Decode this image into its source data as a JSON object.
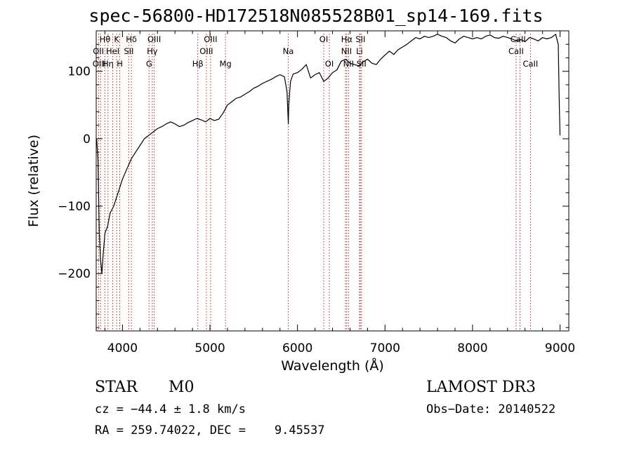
{
  "chart_data": {
    "type": "line",
    "title": "spec-56800-HD172518N085528B01_sp14-169.fits",
    "xlabel": "Wavelength (Å)",
    "ylabel": "Flux (relative)",
    "xlim": [
      3700,
      9100
    ],
    "ylim": [
      -285,
      160
    ],
    "xticks": [
      4000,
      5000,
      6000,
      7000,
      8000,
      9000
    ],
    "yticks": [
      -200,
      -100,
      0,
      100
    ],
    "series": [
      {
        "name": "spectrum",
        "x": [
          3705,
          3720,
          3735,
          3750,
          3765,
          3780,
          3800,
          3830,
          3860,
          3900,
          3950,
          4000,
          4050,
          4100,
          4150,
          4200,
          4250,
          4300,
          4350,
          4400,
          4450,
          4500,
          4550,
          4600,
          4650,
          4700,
          4750,
          4800,
          4850,
          4900,
          4950,
          5000,
          5050,
          5100,
          5150,
          5200,
          5250,
          5300,
          5350,
          5400,
          5450,
          5500,
          5550,
          5600,
          5650,
          5700,
          5750,
          5800,
          5850,
          5880,
          5890,
          5895,
          5900,
          5920,
          5950,
          6000,
          6050,
          6100,
          6150,
          6200,
          6250,
          6300,
          6350,
          6400,
          6450,
          6500,
          6550,
          6600,
          6650,
          6700,
          6750,
          6800,
          6850,
          6900,
          6950,
          7000,
          7050,
          7100,
          7150,
          7200,
          7250,
          7300,
          7350,
          7400,
          7450,
          7500,
          7550,
          7600,
          7650,
          7700,
          7750,
          7800,
          7850,
          7900,
          7950,
          8000,
          8050,
          8100,
          8150,
          8200,
          8250,
          8300,
          8350,
          8400,
          8450,
          8500,
          8550,
          8600,
          8650,
          8700,
          8750,
          8800,
          8850,
          8900,
          8950,
          8980,
          8990,
          9000
        ],
        "y": [
          0,
          -30,
          -140,
          -180,
          -200,
          -170,
          -140,
          -130,
          -110,
          -100,
          -80,
          -60,
          -45,
          -30,
          -20,
          -10,
          0,
          5,
          10,
          15,
          18,
          22,
          25,
          22,
          18,
          20,
          24,
          27,
          30,
          28,
          25,
          30,
          27,
          29,
          38,
          50,
          55,
          60,
          62,
          66,
          70,
          75,
          78,
          82,
          85,
          88,
          92,
          95,
          92,
          70,
          40,
          22,
          50,
          85,
          96,
          98,
          103,
          110,
          90,
          95,
          98,
          85,
          90,
          98,
          102,
          115,
          118,
          112,
          110,
          108,
          114,
          118,
          112,
          110,
          118,
          124,
          130,
          125,
          132,
          136,
          140,
          145,
          150,
          148,
          152,
          150,
          152,
          155,
          152,
          150,
          145,
          142,
          148,
          152,
          150,
          148,
          150,
          148,
          152,
          154,
          150,
          149,
          152,
          150,
          148,
          145,
          147,
          144,
          150,
          148,
          145,
          150,
          148,
          150,
          155,
          140,
          60,
          5
        ]
      }
    ],
    "lines": [
      {
        "wave": 3727,
        "labels": [
          "OII"
        ]
      },
      {
        "wave": 3750,
        "labels": [
          "OIII"
        ]
      },
      {
        "wave": 3798,
        "labels": [
          "Hθ"
        ]
      },
      {
        "wave": 3835,
        "labels": [
          "Hη"
        ]
      },
      {
        "wave": 3889,
        "labels": [
          "HeI"
        ]
      },
      {
        "wave": 3934,
        "labels": [
          "K"
        ]
      },
      {
        "wave": 3969,
        "labels": [
          "H"
        ]
      },
      {
        "wave": 4072,
        "labels": [
          "SII"
        ]
      },
      {
        "wave": 4102,
        "labels": [
          "Hδ"
        ]
      },
      {
        "wave": 4304,
        "labels": [
          "G"
        ]
      },
      {
        "wave": 4341,
        "labels": [
          "Hγ"
        ]
      },
      {
        "wave": 4363,
        "labels": [
          "OIII"
        ]
      },
      {
        "wave": 4861,
        "labels": [
          "Hβ"
        ]
      },
      {
        "wave": 4959,
        "labels": [
          "OIII"
        ]
      },
      {
        "wave": 5007,
        "labels": [
          "OIII"
        ]
      },
      {
        "wave": 5177,
        "labels": [
          "Mg"
        ]
      },
      {
        "wave": 5894,
        "labels": [
          "Na"
        ]
      },
      {
        "wave": 6300,
        "labels": [
          "OI"
        ]
      },
      {
        "wave": 6364,
        "labels": [
          "OI"
        ]
      },
      {
        "wave": 6548,
        "labels": [
          "NII"
        ]
      },
      {
        "wave": 6563,
        "labels": [
          "Hα"
        ]
      },
      {
        "wave": 6583,
        "labels": [
          "NII"
        ]
      },
      {
        "wave": 6708,
        "labels": [
          "Li"
        ]
      },
      {
        "wave": 6717,
        "labels": [
          "SII"
        ]
      },
      {
        "wave": 6731,
        "labels": [
          "SII"
        ]
      },
      {
        "wave": 8498,
        "labels": [
          "CaII"
        ]
      },
      {
        "wave": 8542,
        "labels": [
          "CaII"
        ]
      },
      {
        "wave": 8662,
        "labels": [
          "CaII"
        ]
      }
    ],
    "line_labels_rows": [
      [
        {
          "text": "Hθ",
          "wave": 3800
        },
        {
          "text": "K",
          "wave": 3934
        },
        {
          "text": "Hδ",
          "wave": 4102
        },
        {
          "text": "OIII",
          "wave": 4363
        },
        {
          "text": "OIII",
          "wave": 5007
        },
        {
          "text": "OI",
          "wave": 6300
        },
        {
          "text": "Hα",
          "wave": 6563
        },
        {
          "text": "SII",
          "wave": 6720
        },
        {
          "text": "CaII",
          "wave": 8520
        }
      ],
      [
        {
          "text": "OII",
          "wave": 3725
        },
        {
          "text": "HeI",
          "wave": 3889
        },
        {
          "text": "SII",
          "wave": 4072
        },
        {
          "text": "Hγ",
          "wave": 4341
        },
        {
          "text": "OIII",
          "wave": 4959
        },
        {
          "text": "Na",
          "wave": 5894
        },
        {
          "text": "NII",
          "wave": 6560
        },
        {
          "text": "Li",
          "wave": 6708
        },
        {
          "text": "CaII",
          "wave": 8498
        }
      ],
      [
        {
          "text": "OIII",
          "wave": 3735
        },
        {
          "text": "Hη",
          "wave": 3835
        },
        {
          "text": "H",
          "wave": 3969
        },
        {
          "text": "G",
          "wave": 4304
        },
        {
          "text": "Hβ",
          "wave": 4861
        },
        {
          "text": "Mg",
          "wave": 5177
        },
        {
          "text": "OI",
          "wave": 6364
        },
        {
          "text": "NII",
          "wave": 6583
        },
        {
          "text": "SII",
          "wave": 6731
        },
        {
          "text": "CaII",
          "wave": 8662
        }
      ]
    ],
    "colors": {
      "spectrum": "#000000",
      "lines": "#b22222"
    }
  },
  "info": {
    "object_class": "STAR",
    "subclass": "M0",
    "survey": "LAMOST DR3",
    "cz": "cz = −44.4 ± 1.8 km/s",
    "obs_date": "Obs−Date: 20140522",
    "coords": "RA = 259.74022, DEC =    9.45537"
  }
}
